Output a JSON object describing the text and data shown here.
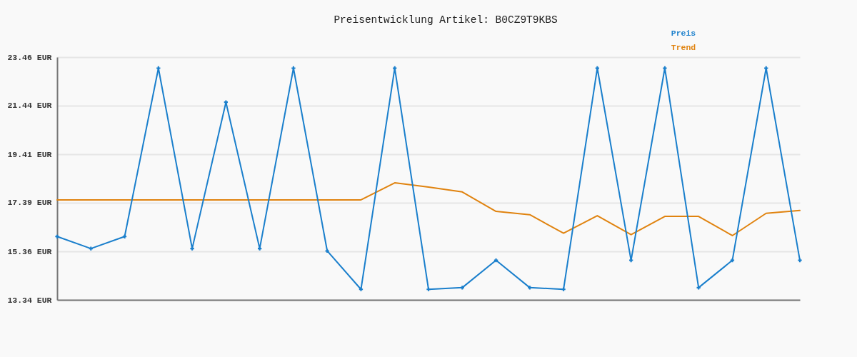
{
  "chart_data": {
    "type": "line",
    "title": "Preisentwicklung Artikel: B0CZ9T9KBS",
    "categories": [
      null,
      null,
      null,
      null,
      null,
      null,
      null,
      null,
      null,
      null,
      null,
      null,
      null,
      null,
      null,
      null,
      null,
      null,
      null,
      null,
      null,
      null,
      null
    ],
    "series": [
      {
        "name": "Preis",
        "color": "#1a7fcc",
        "marker": "cross",
        "values": [
          15.98,
          15.48,
          15.98,
          23.0,
          15.48,
          21.58,
          15.48,
          23.0,
          15.38,
          13.78,
          23.0,
          13.78,
          13.85,
          14.99,
          13.85,
          13.78,
          23.0,
          14.99,
          23.0,
          13.85,
          14.99,
          23.0,
          14.99
        ]
      },
      {
        "name": "Trend",
        "color": "#e0830f",
        "values": [
          17.51,
          17.51,
          17.51,
          17.51,
          17.51,
          17.51,
          17.51,
          17.51,
          17.51,
          17.51,
          18.22,
          18.04,
          17.84,
          17.03,
          16.89,
          16.12,
          16.85,
          16.06,
          16.82,
          16.82,
          16.02,
          16.95,
          17.07
        ]
      }
    ],
    "ylim": [
      13.34,
      23.46
    ],
    "yticks": [
      {
        "value": 13.34,
        "label": "13.34 EUR"
      },
      {
        "value": 15.36,
        "label": "15.36 EUR"
      },
      {
        "value": 17.39,
        "label": "17.39 EUR"
      },
      {
        "value": 19.41,
        "label": "19.41 EUR"
      },
      {
        "value": 21.44,
        "label": "21.44 EUR"
      },
      {
        "value": 23.46,
        "label": "23.46 EUR"
      }
    ],
    "grid": "y",
    "legend": "top right",
    "tick_labels": "y"
  }
}
